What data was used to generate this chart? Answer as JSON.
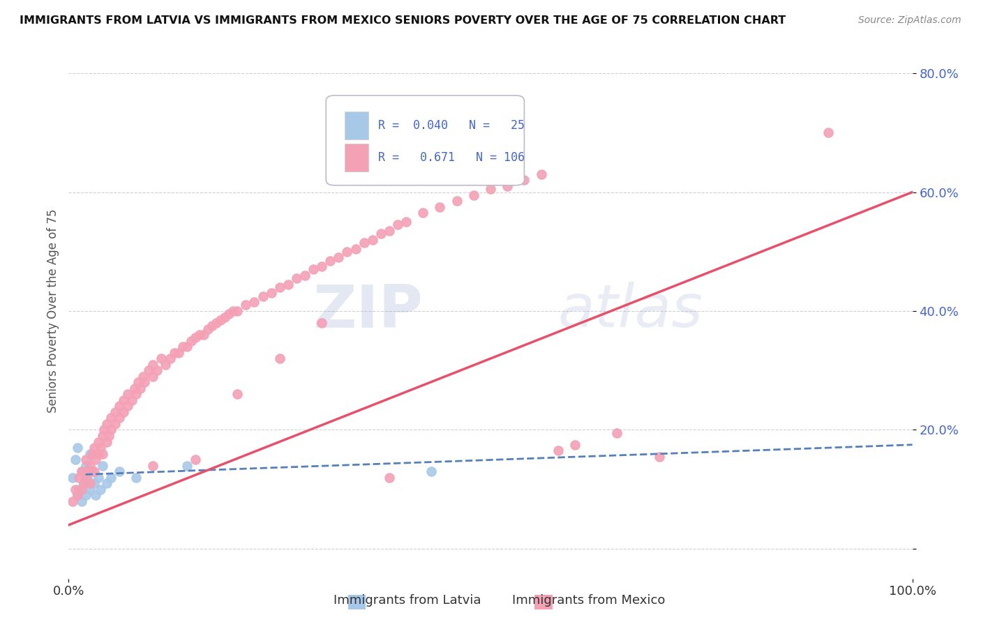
{
  "title": "IMMIGRANTS FROM LATVIA VS IMMIGRANTS FROM MEXICO SENIORS POVERTY OVER THE AGE OF 75 CORRELATION CHART",
  "source": "Source: ZipAtlas.com",
  "ylabel": "Seniors Poverty Over the Age of 75",
  "xlim": [
    0.0,
    1.0
  ],
  "ylim": [
    -0.05,
    0.85
  ],
  "ytick_positions": [
    0.0,
    0.2,
    0.4,
    0.6,
    0.8
  ],
  "yticklabels": [
    "",
    "20.0%",
    "40.0%",
    "60.0%",
    "80.0%"
  ],
  "latvia_R": "0.040",
  "latvia_N": "25",
  "mexico_R": "0.671",
  "mexico_N": "106",
  "latvia_color": "#a8c8e8",
  "mexico_color": "#f4a0b5",
  "latvia_line_color": "#5580bb",
  "mexico_line_color": "#e8506a",
  "text_color": "#4466cc",
  "background_color": "#ffffff",
  "grid_color": "#d0d0d0",
  "legend_color": "#4466cc",
  "latvia_x": [
    0.005,
    0.008,
    0.01,
    0.01,
    0.012,
    0.015,
    0.015,
    0.018,
    0.02,
    0.02,
    0.022,
    0.025,
    0.025,
    0.028,
    0.03,
    0.032,
    0.035,
    0.038,
    0.04,
    0.045,
    0.05,
    0.06,
    0.08,
    0.14,
    0.43
  ],
  "latvia_y": [
    0.12,
    0.15,
    0.09,
    0.17,
    0.1,
    0.13,
    0.08,
    0.11,
    0.09,
    0.14,
    0.12,
    0.1,
    0.16,
    0.13,
    0.11,
    0.09,
    0.12,
    0.1,
    0.14,
    0.11,
    0.12,
    0.13,
    0.12,
    0.14,
    0.13
  ],
  "mexico_x": [
    0.005,
    0.008,
    0.01,
    0.012,
    0.015,
    0.015,
    0.018,
    0.02,
    0.02,
    0.022,
    0.025,
    0.025,
    0.028,
    0.03,
    0.03,
    0.032,
    0.035,
    0.035,
    0.038,
    0.04,
    0.04,
    0.042,
    0.045,
    0.045,
    0.048,
    0.05,
    0.05,
    0.055,
    0.055,
    0.06,
    0.06,
    0.065,
    0.065,
    0.07,
    0.07,
    0.075,
    0.078,
    0.08,
    0.082,
    0.085,
    0.088,
    0.09,
    0.095,
    0.1,
    0.1,
    0.105,
    0.11,
    0.115,
    0.12,
    0.125,
    0.13,
    0.135,
    0.14,
    0.145,
    0.15,
    0.155,
    0.16,
    0.165,
    0.17,
    0.175,
    0.18,
    0.185,
    0.19,
    0.195,
    0.2,
    0.21,
    0.22,
    0.23,
    0.24,
    0.25,
    0.26,
    0.27,
    0.28,
    0.29,
    0.3,
    0.31,
    0.32,
    0.33,
    0.34,
    0.35,
    0.36,
    0.37,
    0.38,
    0.39,
    0.4,
    0.42,
    0.44,
    0.46,
    0.48,
    0.5,
    0.52,
    0.54,
    0.56,
    0.58,
    0.6,
    0.65,
    0.7,
    0.52,
    0.9,
    0.45,
    0.38,
    0.3,
    0.25,
    0.2,
    0.15,
    0.1
  ],
  "mexico_y": [
    0.08,
    0.1,
    0.09,
    0.12,
    0.1,
    0.13,
    0.11,
    0.12,
    0.15,
    0.13,
    0.14,
    0.11,
    0.16,
    0.13,
    0.17,
    0.15,
    0.16,
    0.18,
    0.17,
    0.19,
    0.16,
    0.2,
    0.18,
    0.21,
    0.19,
    0.2,
    0.22,
    0.21,
    0.23,
    0.22,
    0.24,
    0.23,
    0.25,
    0.24,
    0.26,
    0.25,
    0.27,
    0.26,
    0.28,
    0.27,
    0.29,
    0.28,
    0.3,
    0.29,
    0.31,
    0.3,
    0.32,
    0.31,
    0.32,
    0.33,
    0.33,
    0.34,
    0.34,
    0.35,
    0.355,
    0.36,
    0.36,
    0.37,
    0.375,
    0.38,
    0.385,
    0.39,
    0.395,
    0.4,
    0.4,
    0.41,
    0.415,
    0.425,
    0.43,
    0.44,
    0.445,
    0.455,
    0.46,
    0.47,
    0.475,
    0.485,
    0.49,
    0.5,
    0.505,
    0.515,
    0.52,
    0.53,
    0.535,
    0.545,
    0.55,
    0.565,
    0.575,
    0.585,
    0.595,
    0.605,
    0.61,
    0.62,
    0.63,
    0.165,
    0.175,
    0.195,
    0.155,
    0.67,
    0.7,
    0.68,
    0.12,
    0.38,
    0.32,
    0.26,
    0.15,
    0.14
  ],
  "latvia_reg": [
    0.02,
    0.125,
    1.0,
    0.175
  ],
  "mexico_reg": [
    0.0,
    0.04,
    1.0,
    0.6
  ]
}
